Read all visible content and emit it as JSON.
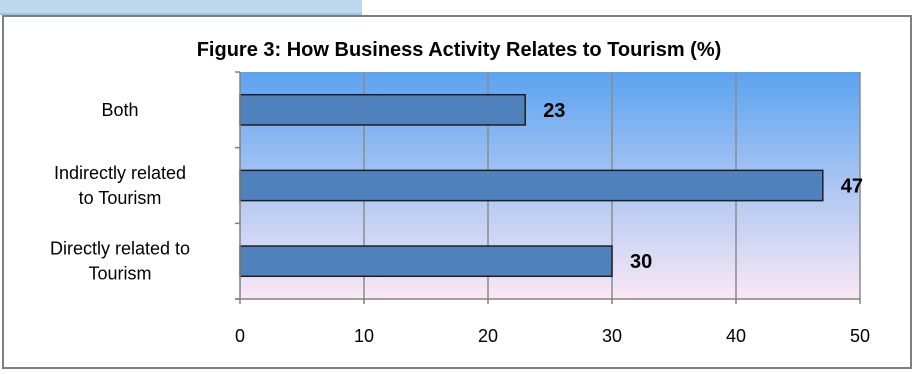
{
  "chart_data": {
    "type": "bar",
    "orientation": "horizontal",
    "title": "Figure 3: How Business Activity Relates to Tourism (%)",
    "xlabel": "",
    "ylabel": "",
    "categories": [
      [
        "Directly related to",
        "Tourism"
      ],
      [
        "Indirectly related",
        "to Tourism"
      ],
      [
        "Both"
      ]
    ],
    "values": [
      30,
      47,
      23
    ],
    "data_labels": [
      "30",
      "47",
      "23"
    ],
    "xlim": [
      0,
      50
    ],
    "xticks": [
      0,
      10,
      20,
      30,
      40,
      50
    ],
    "grid": true,
    "legend": "none",
    "colors": {
      "bar_fill": "#4f81bd",
      "bar_stroke": "#1f1f1f",
      "plot_top": "#5ba3f0",
      "plot_bottom": "#fbe8f5",
      "grid": "#8c8c8c",
      "axis": "#808080"
    }
  }
}
